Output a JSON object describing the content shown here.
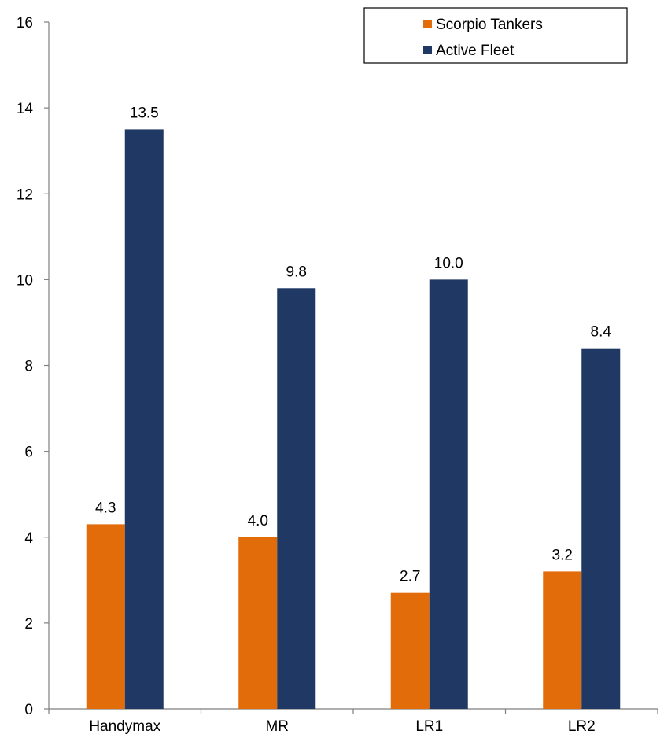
{
  "chart_data": {
    "type": "bar",
    "title": "",
    "xlabel": "",
    "ylabel": "",
    "categories": [
      "Handymax",
      "MR",
      "LR1",
      "LR2"
    ],
    "series": [
      {
        "name": "Scorpio Tankers",
        "color": "#e36c0a",
        "values": [
          4.3,
          4.0,
          2.7,
          3.2
        ],
        "labels": [
          "4.3",
          "4.0",
          "2.7",
          "3.2"
        ]
      },
      {
        "name": "Active Fleet",
        "color": "#1f3864",
        "values": [
          13.5,
          9.8,
          10.0,
          8.4
        ],
        "labels": [
          "13.5",
          "9.8",
          "10.0",
          "8.4"
        ]
      }
    ],
    "ylim": [
      0,
      16
    ],
    "yticks": [
      "0",
      "2",
      "4",
      "6",
      "8",
      "10",
      "12",
      "14",
      "16"
    ],
    "grid": false,
    "legend_position": "top-right"
  }
}
